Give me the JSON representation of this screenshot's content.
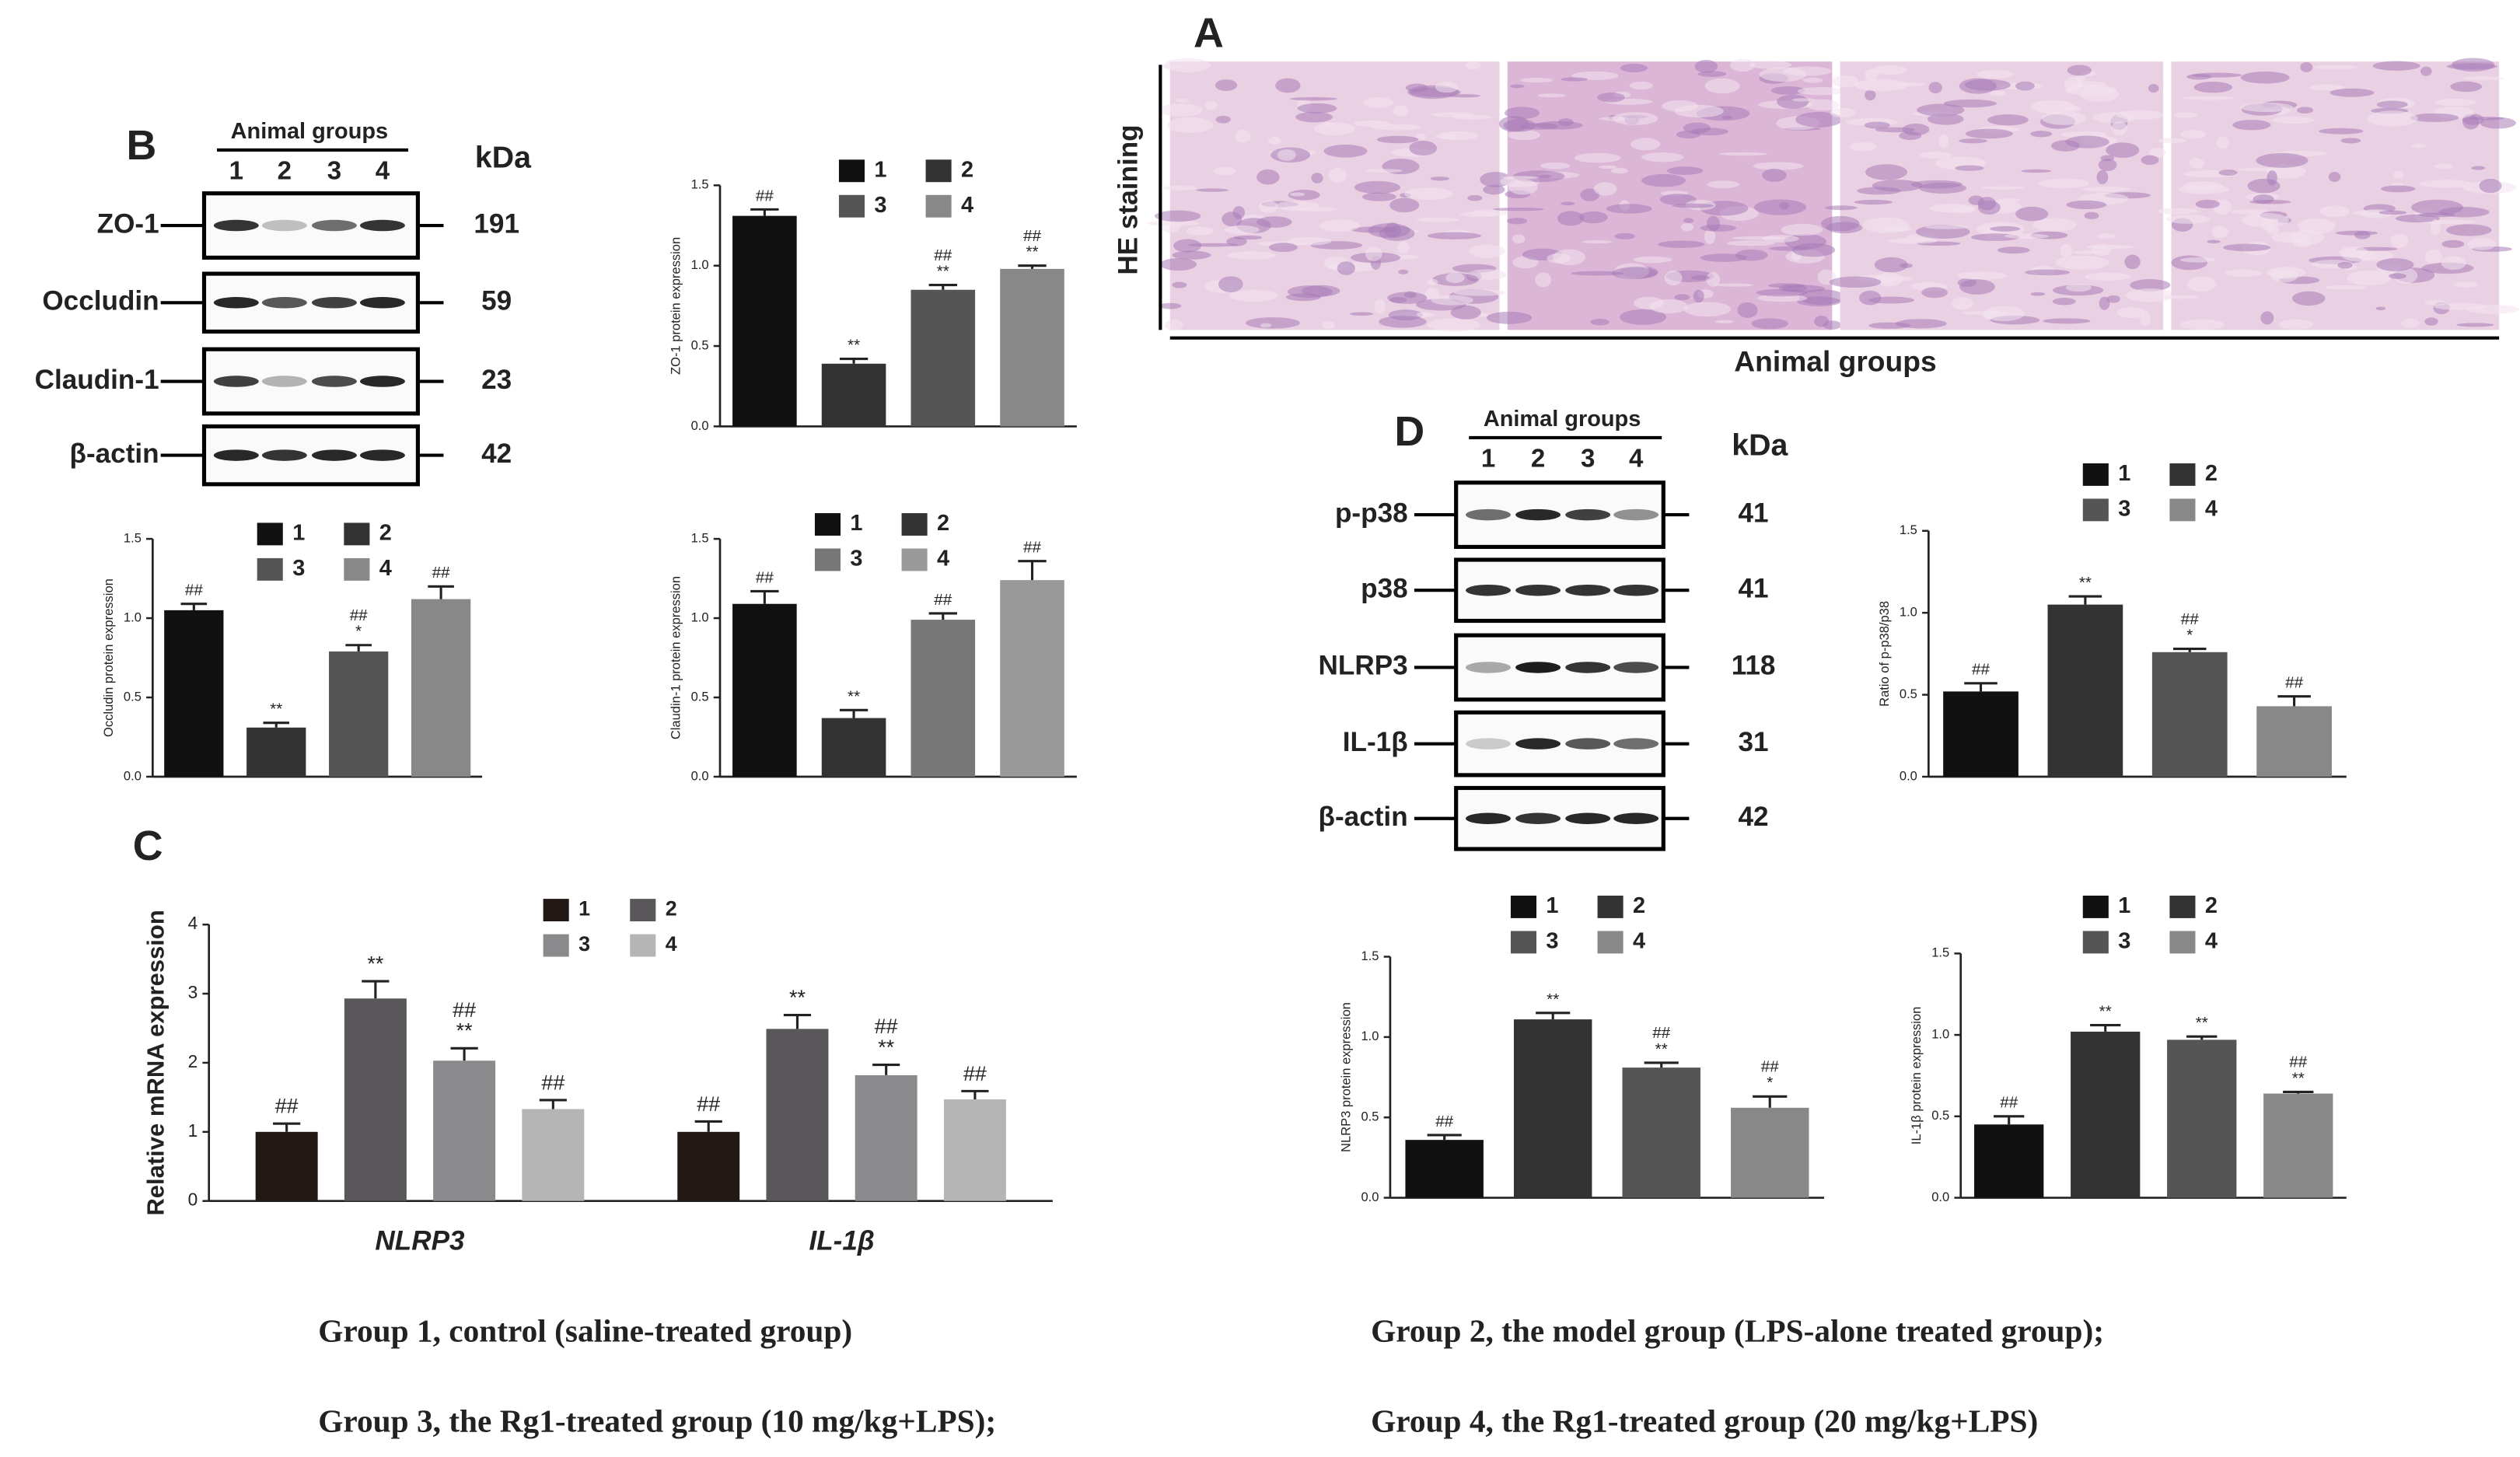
{
  "panel_labels": {
    "a": "A",
    "b": "B",
    "c": "C",
    "d": "D"
  },
  "histology": {
    "title": "HE staining",
    "xlabel": "Animal groups"
  },
  "blot_b": {
    "header": "Animal groups",
    "lanes": [
      "1",
      "2",
      "3",
      "4"
    ],
    "unit": "kDa",
    "rows": [
      {
        "label": "ZO-1",
        "kda": "191"
      },
      {
        "label": "Occludin",
        "kda": "59"
      },
      {
        "label": "Claudin-1",
        "kda": "23"
      },
      {
        "label": "β-actin",
        "kda": "42"
      }
    ]
  },
  "blot_d": {
    "header": "Animal groups",
    "lanes": [
      "1",
      "2",
      "3",
      "4"
    ],
    "unit": "kDa",
    "rows": [
      {
        "label": "p-p38",
        "kda": "41"
      },
      {
        "label": "p38",
        "kda": "41"
      },
      {
        "label": "NLRP3",
        "kda": "118"
      },
      {
        "label": "IL-1β",
        "kda": "31"
      },
      {
        "label": "β-actin",
        "kda": "42"
      }
    ]
  },
  "chart_data": [
    {
      "type": "bar",
      "y_label": "ZO-1 protein expression",
      "categories": [
        "1",
        "2",
        "3",
        "4"
      ],
      "colors": [
        "#111111",
        "#333333",
        "#555555",
        "#888888"
      ],
      "values": [
        1.31,
        0.39,
        0.85,
        0.98
      ],
      "errors": [
        0.04,
        0.03,
        0.03,
        0.02
      ],
      "annotations": [
        [
          "##"
        ],
        [
          "**"
        ],
        [
          "##",
          "**"
        ],
        [
          "##",
          "**"
        ]
      ],
      "ylim": [
        0,
        1.5
      ],
      "yticks": [
        {
          "value": 0,
          "label": "0.0"
        },
        0.5,
        {
          "value": 1,
          "label": "1.0"
        },
        1.5
      ]
    },
    {
      "type": "bar",
      "y_label": "Occludin protein expression",
      "categories": [
        "1",
        "2",
        "3",
        "4"
      ],
      "colors": [
        "#111111",
        "#333333",
        "#555555",
        "#888888"
      ],
      "values": [
        1.05,
        0.31,
        0.79,
        1.12
      ],
      "errors": [
        0.04,
        0.03,
        0.04,
        0.08
      ],
      "annotations": [
        [
          "##"
        ],
        [
          "**"
        ],
        [
          "##",
          "*"
        ],
        [
          "##"
        ]
      ],
      "ylim": [
        0,
        1.5
      ],
      "yticks": [
        {
          "value": 0,
          "label": "0.0"
        },
        0.5,
        {
          "value": 1,
          "label": "1.0"
        },
        1.5
      ]
    },
    {
      "type": "bar",
      "y_label": "Claudin-1 protein expression",
      "categories": [
        "1",
        "2",
        "3",
        "4"
      ],
      "colors": [
        "#111111",
        "#333333",
        "#777777",
        "#999999"
      ],
      "values": [
        1.09,
        0.37,
        0.99,
        1.24
      ],
      "errors": [
        0.08,
        0.05,
        0.04,
        0.12
      ],
      "annotations": [
        [
          "##"
        ],
        [
          "**"
        ],
        [
          "##"
        ],
        [
          "##"
        ]
      ],
      "ylim": [
        0,
        1.5
      ],
      "yticks": [
        {
          "value": 0,
          "label": "0.0"
        },
        0.5,
        {
          "value": 1,
          "label": "1.0"
        },
        1.5
      ]
    },
    {
      "type": "grouped_bar",
      "y_label": "Relative mRNA expression",
      "categories": [
        "NLRP3",
        "IL-1β"
      ],
      "series": [
        {
          "name": "1",
          "color": "#231815",
          "values": [
            1.0,
            1.0
          ],
          "errors": [
            0.12,
            0.15
          ],
          "annotations": [
            [
              "##"
            ],
            [
              "##"
            ]
          ]
        },
        {
          "name": "2",
          "color": "#59575a",
          "values": [
            2.93,
            2.49
          ],
          "errors": [
            0.25,
            0.2
          ],
          "annotations": [
            [
              "**"
            ],
            [
              "**"
            ]
          ]
        },
        {
          "name": "3",
          "color": "#8a898b",
          "values": [
            2.03,
            1.82
          ],
          "errors": [
            0.18,
            0.15
          ],
          "annotations": [
            [
              "##",
              "**"
            ],
            [
              "##",
              "**"
            ]
          ]
        },
        {
          "name": "4",
          "color": "#b5b5b6",
          "values": [
            1.33,
            1.47
          ],
          "errors": [
            0.13,
            0.12
          ],
          "annotations": [
            [
              "##"
            ],
            [
              "##"
            ]
          ]
        }
      ],
      "ylim": [
        0,
        4
      ],
      "yticks": [
        0,
        1,
        2,
        3,
        4
      ]
    },
    {
      "type": "bar",
      "y_label": "Ratio of p-p38/p38",
      "categories": [
        "1",
        "2",
        "3",
        "4"
      ],
      "colors": [
        "#111111",
        "#333333",
        "#555555",
        "#888888"
      ],
      "values": [
        0.52,
        1.05,
        0.76,
        0.43
      ],
      "errors": [
        0.05,
        0.05,
        0.02,
        0.06
      ],
      "annotations": [
        [
          "##"
        ],
        [
          "**"
        ],
        [
          "##",
          "*"
        ],
        [
          "##"
        ]
      ],
      "ylim": [
        0,
        1.5
      ],
      "yticks": [
        {
          "value": 0,
          "label": "0.0"
        },
        0.5,
        {
          "value": 1,
          "label": "1.0"
        },
        1.5
      ]
    },
    {
      "type": "bar",
      "y_label": "NLRP3 protein expression",
      "categories": [
        "1",
        "2",
        "3",
        "4"
      ],
      "colors": [
        "#111111",
        "#333333",
        "#555555",
        "#888888"
      ],
      "values": [
        0.36,
        1.11,
        0.81,
        0.56
      ],
      "errors": [
        0.03,
        0.04,
        0.03,
        0.07
      ],
      "annotations": [
        [
          "##"
        ],
        [
          "**"
        ],
        [
          "##",
          "**"
        ],
        [
          "##",
          "*"
        ]
      ],
      "ylim": [
        0,
        1.5
      ],
      "yticks": [
        {
          "value": 0,
          "label": "0.0"
        },
        0.5,
        {
          "value": 1,
          "label": "1.0"
        },
        1.5
      ]
    },
    {
      "type": "bar",
      "y_label": "IL-1β protein expression",
      "categories": [
        "1",
        "2",
        "3",
        "4"
      ],
      "colors": [
        "#111111",
        "#333333",
        "#555555",
        "#888888"
      ],
      "values": [
        0.45,
        1.02,
        0.97,
        0.64
      ],
      "errors": [
        0.05,
        0.04,
        0.02,
        0.01
      ],
      "annotations": [
        [
          "##"
        ],
        [
          "**"
        ],
        [
          "**"
        ],
        [
          "##",
          "**"
        ]
      ],
      "ylim": [
        0,
        1.5
      ],
      "yticks": [
        {
          "value": 0,
          "label": "0.0"
        },
        0.5,
        {
          "value": 1,
          "label": "1.0"
        },
        1.5
      ]
    }
  ],
  "captions": [
    "Group 1, control (saline-treated group)",
    "Group  2, the model group (LPS-alone treated group);",
    "Group 3, the Rg1-treated group (10 mg/kg+LPS);",
    "Group 4, the Rg1-treated group (20 mg/kg+LPS)"
  ]
}
